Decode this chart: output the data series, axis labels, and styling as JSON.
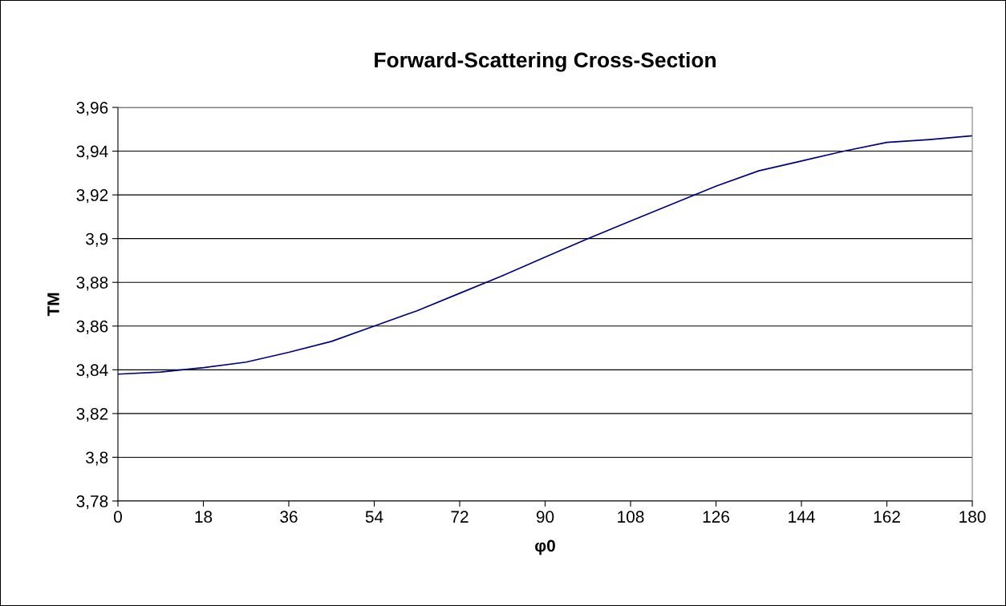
{
  "chart_data": {
    "type": "line",
    "title": "Forward-Scattering Cross-Section",
    "xlabel": "φ0",
    "ylabel": "TM",
    "x": [
      0,
      9,
      18,
      27,
      36,
      45,
      54,
      63,
      72,
      81,
      90,
      99,
      108,
      117,
      126,
      135,
      144,
      153,
      162,
      171,
      180
    ],
    "series": [
      {
        "color": "#000080",
        "values": [
          3.838,
          3.839,
          3.841,
          3.8435,
          3.848,
          3.853,
          3.86,
          3.867,
          3.875,
          3.883,
          3.8915,
          3.9,
          3.908,
          3.916,
          3.924,
          3.931,
          3.9355,
          3.94,
          3.944,
          3.9453,
          3.947
        ]
      }
    ],
    "xlim": [
      0,
      180
    ],
    "xticks": [
      0,
      18,
      36,
      54,
      72,
      90,
      108,
      126,
      144,
      162,
      180
    ],
    "ylim": [
      3.78,
      3.96
    ],
    "yticks": [
      {
        "value": 3.78,
        "label": "3,78"
      },
      {
        "value": 3.8,
        "label": "3,8"
      },
      {
        "value": 3.82,
        "label": "3,82"
      },
      {
        "value": 3.84,
        "label": "3,84"
      },
      {
        "value": 3.86,
        "label": "3,86"
      },
      {
        "value": 3.88,
        "label": "3,88"
      },
      {
        "value": 3.9,
        "label": "3,9"
      },
      {
        "value": 3.92,
        "label": "3,92"
      },
      {
        "value": 3.94,
        "label": "3,94"
      },
      {
        "value": 3.96,
        "label": "3,96"
      }
    ],
    "grid": "y",
    "marker": "none",
    "line_style": "solid"
  }
}
